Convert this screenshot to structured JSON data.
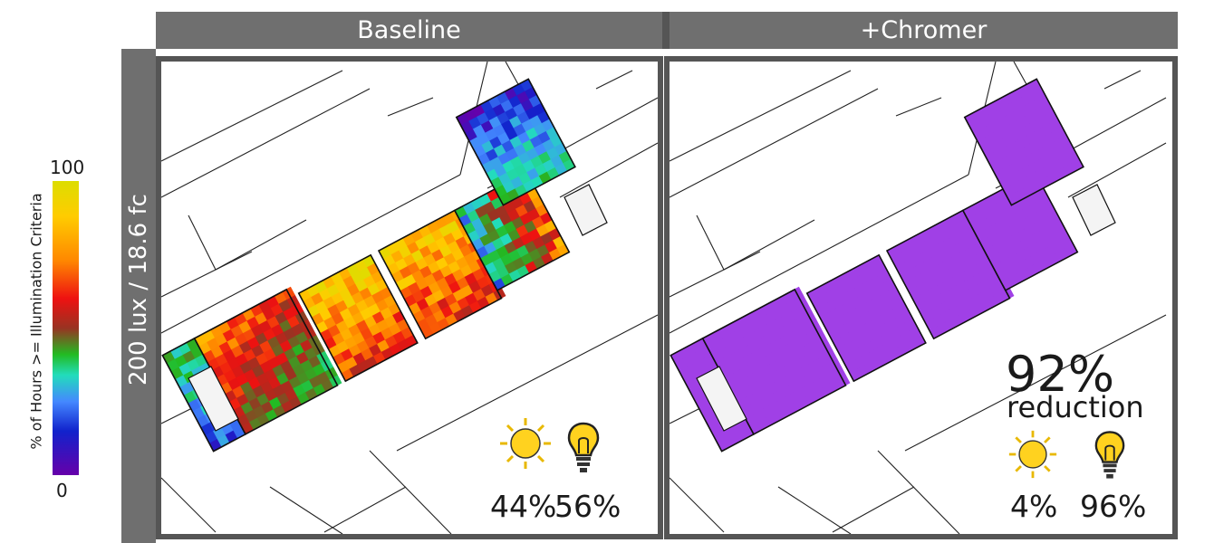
{
  "columns": [
    {
      "title": "Baseline",
      "daylight_pct": "44%",
      "electric_pct": "56%"
    },
    {
      "title": "+Chromer",
      "daylight_pct": "4%",
      "electric_pct": "96%",
      "reduction_value": "92%",
      "reduction_label": "reduction"
    }
  ],
  "row_label": "200 lux / 18.6 fc",
  "colorbar": {
    "title": "% of Hours >= Illumination Criteria",
    "max_label": "100",
    "min_label": "0",
    "colors": [
      "#6600aa",
      "#1122cc",
      "#4488ff",
      "#22ddbb",
      "#22bb22",
      "#993322",
      "#ee1111",
      "#ff8800",
      "#ffcc00",
      "#dddd00"
    ]
  },
  "icons": [
    "sun-icon",
    "lightbulb-icon"
  ],
  "chart_data": {
    "type": "heatmap",
    "panels": [
      "Baseline",
      "+Chromer"
    ],
    "metric": "% of Hours >= Illumination Criteria",
    "scale": [
      0,
      100
    ],
    "results": [
      {
        "panel": "Baseline",
        "daylight": 44,
        "electric": 56
      },
      {
        "panel": "+Chromer",
        "daylight": 4,
        "electric": 96,
        "reduction": 92
      }
    ]
  }
}
